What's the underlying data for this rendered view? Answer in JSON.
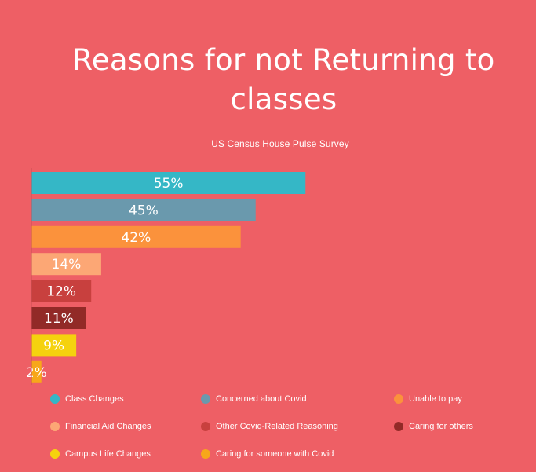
{
  "chart_data": {
    "type": "bar",
    "orientation": "horizontal",
    "title": "Reasons for not Returning to classes",
    "subtitle": "US Census House Pulse Survey",
    "value_format": "percent",
    "xlim": [
      0,
      100
    ],
    "grid": false,
    "legend_position": "bottom",
    "categories": [
      "Class Changes",
      "Concerned about Covid",
      "Unable to pay",
      "Financial Aid Changes",
      "Other Covid-Related Reasoning",
      "Caring for others",
      "Campus Life Changes",
      "Caring for someone with Covid"
    ],
    "values": [
      55,
      45,
      42,
      14,
      12,
      11,
      9,
      2
    ],
    "colors": [
      "#35b7c6",
      "#6a99ad",
      "#fb923c",
      "#fca775",
      "#c8403e",
      "#922a27",
      "#f5d20e",
      "#f7a71a"
    ]
  }
}
